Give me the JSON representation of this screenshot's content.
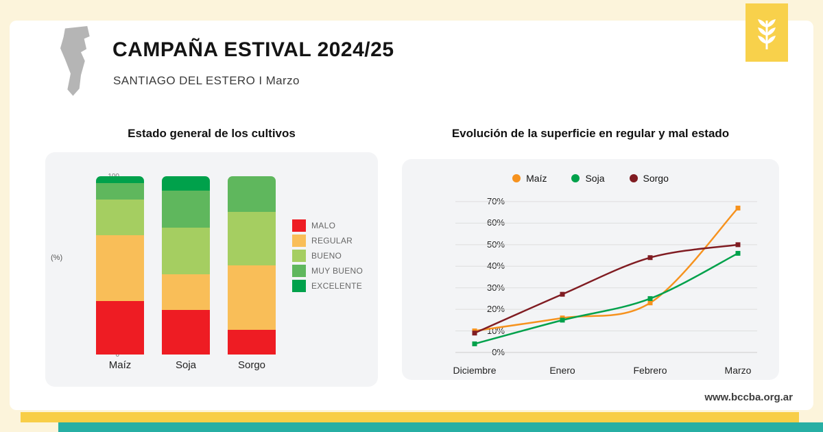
{
  "header": {
    "title": "CAMPAÑA ESTIVAL 2024/25",
    "subtitle": "SANTIAGO DEL ESTERO I Marzo"
  },
  "footer": {
    "website": "www.bccba.org.ar"
  },
  "colors": {
    "page_background": "#FCF4DB",
    "panel_background": "#F3F4F6",
    "logo_yellow": "#F8D14B",
    "strip_yellow": "#F8CE47",
    "strip_teal": "#27AFA4",
    "map_gray": "#B5B5B5"
  },
  "chart_data": [
    {
      "type": "bar",
      "stacked": true,
      "title": "Estado general de los cultivos",
      "ylabel": "(%)",
      "categories": [
        "Maíz",
        "Soja",
        "Sorgo"
      ],
      "series": [
        {
          "name": "MALO",
          "color": "#EE1C23",
          "values": [
            30,
            25,
            14
          ]
        },
        {
          "name": "REGULAR",
          "color": "#F9BE58",
          "values": [
            37,
            20,
            36
          ]
        },
        {
          "name": "BUENO",
          "color": "#A5CE61",
          "values": [
            20,
            26,
            30
          ]
        },
        {
          "name": "MUY BUENO",
          "color": "#5FB75D",
          "values": [
            9,
            21,
            20
          ]
        },
        {
          "name": "EXCELENTE",
          "color": "#00A14B",
          "values": [
            4,
            8,
            0
          ]
        }
      ],
      "ylim": [
        0,
        100
      ],
      "yticks": [
        0,
        20,
        40,
        60,
        80,
        100
      ],
      "grid": false,
      "legend_position": "right"
    },
    {
      "type": "line",
      "title": "Evolución de la superficie en regular y mal estado",
      "x": [
        "Diciembre",
        "Enero",
        "Febrero",
        "Marzo"
      ],
      "series": [
        {
          "name": "Maíz",
          "color": "#F6921E",
          "values": [
            10,
            16,
            23,
            67
          ]
        },
        {
          "name": "Soja",
          "color": "#00A14B",
          "values": [
            4,
            15,
            25,
            46
          ]
        },
        {
          "name": "Sorgo",
          "color": "#801C22",
          "values": [
            9,
            27,
            44,
            50
          ]
        }
      ],
      "ylim": [
        0,
        70
      ],
      "ytick_labels": [
        "0%",
        "10%",
        "20%",
        "30%",
        "40%",
        "50%",
        "60%",
        "70%"
      ],
      "grid": true,
      "legend_position": "top"
    }
  ]
}
